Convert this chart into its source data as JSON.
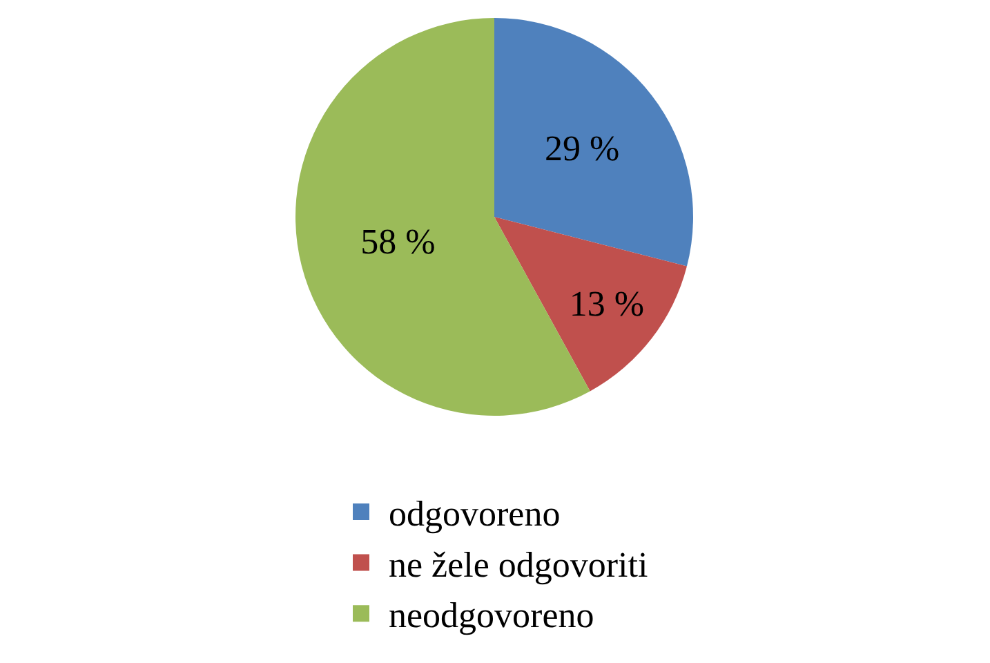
{
  "chart_data": {
    "type": "pie",
    "categories": [
      "odgovoreno",
      "ne žele odgovoriti",
      "neodgovoreno"
    ],
    "values": [
      29,
      13,
      58
    ],
    "value_labels": [
      "29 %",
      "13 %",
      "58 %"
    ],
    "colors": [
      "#4f81bd",
      "#c0504d",
      "#9bbb59"
    ],
    "legend": "bottom"
  }
}
